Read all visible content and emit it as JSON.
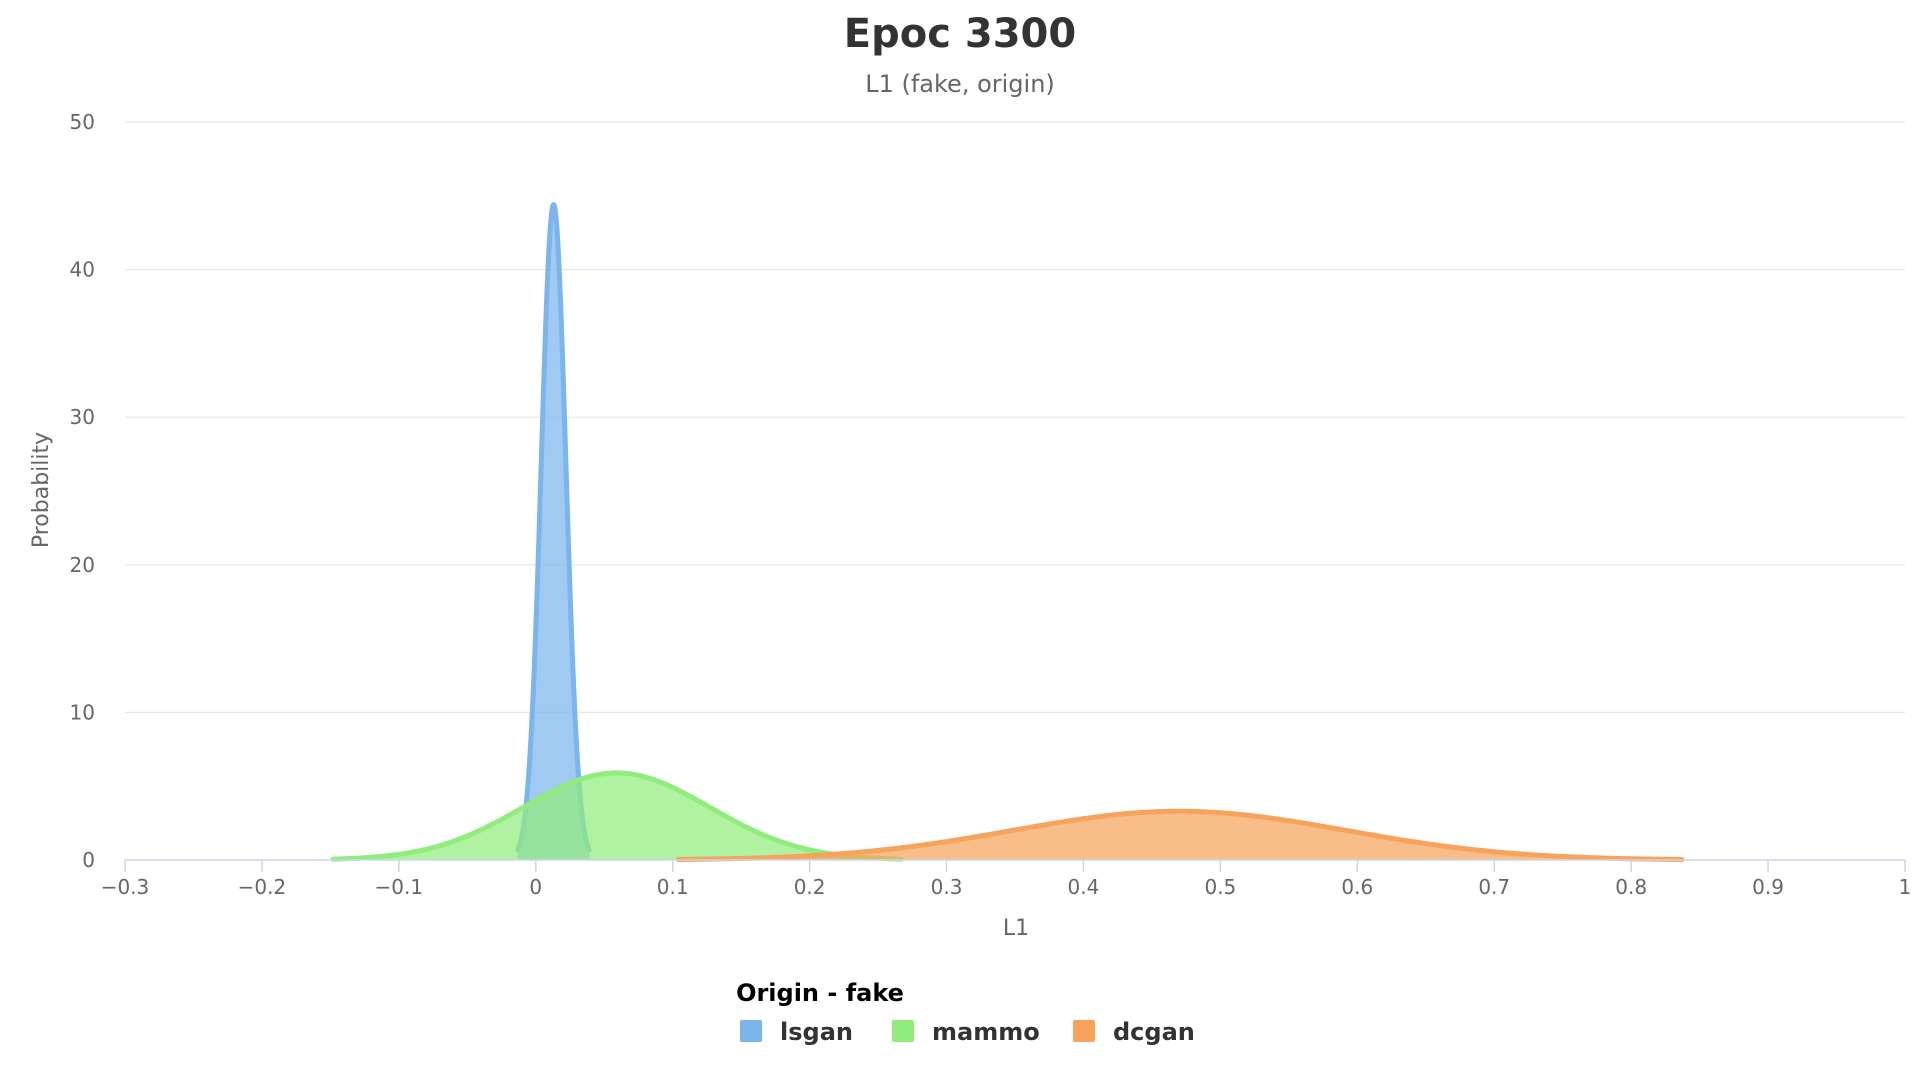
{
  "chart_data": {
    "type": "area",
    "title": "Epoc 3300",
    "subtitle": "L1 (fake, origin)",
    "xlabel": "L1",
    "ylabel": "Probability",
    "xlim": [
      -0.3,
      1
    ],
    "ylim": [
      0,
      50
    ],
    "x_ticks": [
      -0.3,
      -0.2,
      -0.1,
      0,
      0.1,
      0.2,
      0.3,
      0.4,
      0.5,
      0.6,
      0.7,
      0.8,
      0.9,
      1
    ],
    "x_tick_labels": [
      "−0.3",
      "−0.2",
      "−0.1",
      "0",
      "0.1",
      "0.2",
      "0.3",
      "0.4",
      "0.5",
      "0.6",
      "0.7",
      "0.8",
      "0.9",
      "1"
    ],
    "y_ticks": [
      0,
      10,
      20,
      30,
      40,
      50
    ],
    "y_tick_labels": [
      "0",
      "10",
      "20",
      "30",
      "40",
      "50"
    ],
    "grid": true,
    "legend": {
      "title": "Origin - fake",
      "position": "bottom-center"
    },
    "series": [
      {
        "name": "lsgan",
        "color": "#7cb5ec",
        "x_range": [
          -0.013,
          0.039
        ],
        "peak_x": 0.013,
        "peak_y": 44.4,
        "sigma": 0.009
      },
      {
        "name": "mammo",
        "color": "#90ed7d",
        "x_range": [
          -0.148,
          0.267
        ],
        "peak_x": 0.059,
        "peak_y": 5.9,
        "sigma": 0.068
      },
      {
        "name": "dcgan",
        "color": "#f7a35c",
        "x_range": [
          0.104,
          0.837
        ],
        "peak_x": 0.47,
        "peak_y": 3.3,
        "sigma": 0.122
      }
    ]
  }
}
